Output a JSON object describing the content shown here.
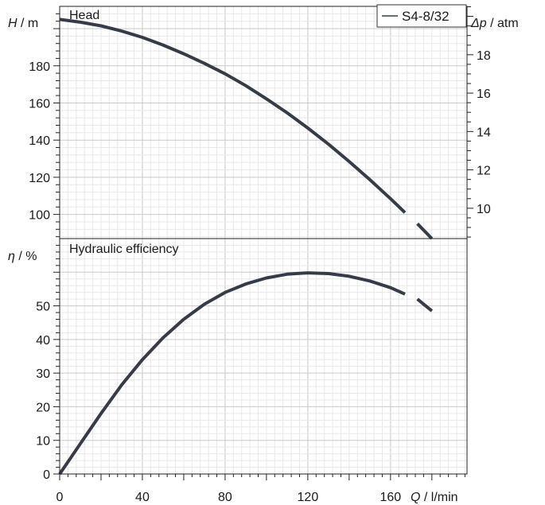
{
  "chart_data": [
    {
      "type": "line",
      "panel_title": "Head",
      "y_symbol": "H",
      "y_unit": " / m",
      "y2_symbol": "Δp",
      "y2_unit": " / atm",
      "xlim": [
        0,
        197
      ],
      "ylim": [
        87,
        212
      ],
      "y2lim": [
        8.42,
        20.52
      ],
      "y_ticks": [
        100,
        120,
        140,
        160,
        180
      ],
      "y2_ticks": [
        10,
        12,
        14,
        16,
        18
      ],
      "legend": {
        "entry": "S4-8/32",
        "position": "top-right"
      },
      "series": [
        {
          "name": "S4-8/32",
          "color": "#353c47",
          "x": [
            0,
            10,
            20,
            30,
            40,
            50,
            60,
            70,
            80,
            90,
            100,
            110,
            120,
            130,
            140,
            150,
            160,
            167
          ],
          "y": [
            205,
            203.5,
            201.5,
            198.7,
            195.3,
            191.2,
            186.5,
            181.3,
            175.7,
            169.3,
            162.2,
            154.7,
            146.5,
            137.8,
            128.5,
            118.7,
            108.5,
            101
          ],
          "extrapolated_x": [
            173,
            180
          ],
          "extrapolated_y": [
            95,
            87
          ]
        }
      ]
    },
    {
      "type": "line",
      "panel_title": "Hydraulic efficiency",
      "y_symbol": "η",
      "y_unit": " / %",
      "xlim": [
        0,
        197
      ],
      "ylim": [
        0,
        70
      ],
      "y_ticks": [
        0,
        10,
        20,
        30,
        40,
        50
      ],
      "x_ticks": [
        0,
        40,
        80,
        120,
        160
      ],
      "x_symbol": "Q",
      "x_unit": " / l/min",
      "series": [
        {
          "name": "S4-8/32",
          "color": "#353c47",
          "x": [
            0,
            5,
            10,
            20,
            30,
            40,
            50,
            60,
            70,
            80,
            90,
            100,
            110,
            120,
            130,
            140,
            150,
            160,
            167
          ],
          "y": [
            0,
            4.5,
            9,
            18,
            26.5,
            34,
            40.5,
            46,
            50.5,
            54,
            56.5,
            58.3,
            59.4,
            59.8,
            59.6,
            58.8,
            57.4,
            55.4,
            53.5
          ],
          "extrapolated_x": [
            173,
            180
          ],
          "extrapolated_y": [
            52,
            48.5
          ]
        }
      ]
    }
  ]
}
